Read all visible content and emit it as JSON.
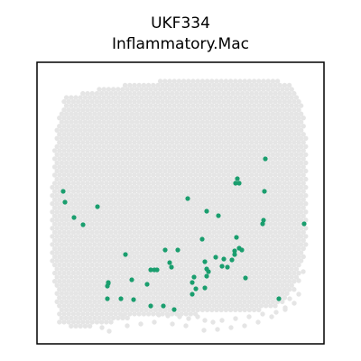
{
  "chart_data": {
    "type": "scatter",
    "title": "UKF334",
    "subtitle": "Inflammatory.Mac",
    "xlabel": "",
    "ylabel": "",
    "xlim": [
      0,
      318
    ],
    "ylim": [
      0,
      312
    ],
    "grid": false,
    "legend": "none",
    "colors": {
      "background_spots": "#e5e5e5",
      "highlight": "#1a9e6e",
      "frame": "#000000"
    },
    "background_region": [
      [
        30,
        273
      ],
      [
        70,
        283
      ],
      [
        120,
        290
      ],
      [
        170,
        294
      ],
      [
        215,
        294
      ],
      [
        250,
        295
      ],
      [
        280,
        289
      ],
      [
        293,
        270
      ],
      [
        298,
        230
      ],
      [
        300,
        190
      ],
      [
        300,
        150
      ],
      [
        300,
        110
      ],
      [
        293,
        85
      ],
      [
        285,
        60
      ],
      [
        270,
        43
      ],
      [
        250,
        38
      ],
      [
        215,
        34
      ],
      [
        175,
        33
      ],
      [
        140,
        33
      ],
      [
        110,
        30
      ],
      [
        85,
        24
      ],
      [
        60,
        19
      ],
      [
        40,
        18
      ],
      [
        25,
        22
      ],
      [
        20,
        60
      ],
      [
        16,
        100
      ],
      [
        16,
        150
      ],
      [
        18,
        200
      ],
      [
        22,
        240
      ]
    ],
    "background_extra": [
      [
        290,
        55
      ],
      [
        285,
        45
      ],
      [
        275,
        38
      ],
      [
        260,
        30
      ],
      [
        245,
        24
      ],
      [
        230,
        20
      ],
      [
        215,
        18
      ],
      [
        200,
        16
      ],
      [
        185,
        15
      ],
      [
        165,
        20
      ],
      [
        150,
        22
      ],
      [
        130,
        24
      ],
      [
        115,
        22
      ],
      [
        100,
        20
      ],
      [
        80,
        14
      ],
      [
        72,
        18
      ],
      [
        95,
        30
      ],
      [
        290,
        120
      ],
      [
        285,
        108
      ],
      [
        295,
        80
      ],
      [
        290,
        70
      ],
      [
        280,
        50
      ],
      [
        275,
        40
      ],
      [
        265,
        35
      ],
      [
        250,
        33
      ],
      [
        235,
        30
      ],
      [
        220,
        28
      ],
      [
        205,
        26
      ],
      [
        195,
        24
      ],
      [
        186,
        26
      ],
      [
        178,
        30
      ],
      [
        168,
        28
      ],
      [
        158,
        30
      ],
      [
        145,
        31
      ],
      [
        135,
        32
      ]
    ],
    "highlight_points": [
      [
        253,
        205
      ],
      [
        222,
        183
      ],
      [
        224,
        178
      ],
      [
        220,
        178
      ],
      [
        252,
        169
      ],
      [
        29,
        169
      ],
      [
        31,
        157
      ],
      [
        41,
        140
      ],
      [
        51,
        132
      ],
      [
        67,
        152
      ],
      [
        167,
        161
      ],
      [
        188,
        147
      ],
      [
        201,
        142
      ],
      [
        251,
        137
      ],
      [
        250,
        133
      ],
      [
        296,
        133
      ],
      [
        183,
        116
      ],
      [
        221,
        118
      ],
      [
        98,
        99
      ],
      [
        142,
        104
      ],
      [
        156,
        104
      ],
      [
        147,
        90
      ],
      [
        149,
        85
      ],
      [
        198,
        96
      ],
      [
        207,
        94
      ],
      [
        126,
        82
      ],
      [
        130,
        82
      ],
      [
        133,
        82
      ],
      [
        105,
        71
      ],
      [
        79,
        68
      ],
      [
        122,
        66
      ],
      [
        172,
        68
      ],
      [
        174,
        74
      ],
      [
        188,
        75
      ],
      [
        190,
        80
      ],
      [
        231,
        73
      ],
      [
        186,
        91
      ],
      [
        205,
        86
      ],
      [
        211,
        85
      ],
      [
        216,
        93
      ],
      [
        224,
        106
      ],
      [
        219,
        99
      ],
      [
        78,
        50
      ],
      [
        93,
        50
      ],
      [
        107,
        49
      ],
      [
        172,
        55
      ],
      [
        176,
        61
      ],
      [
        186,
        62
      ],
      [
        78,
        64
      ],
      [
        126,
        42
      ],
      [
        140,
        42
      ],
      [
        152,
        38
      ],
      [
        268,
        50
      ],
      [
        219,
        103
      ],
      [
        227,
        104
      ],
      [
        79,
        67
      ],
      [
        188,
        83
      ]
    ]
  }
}
